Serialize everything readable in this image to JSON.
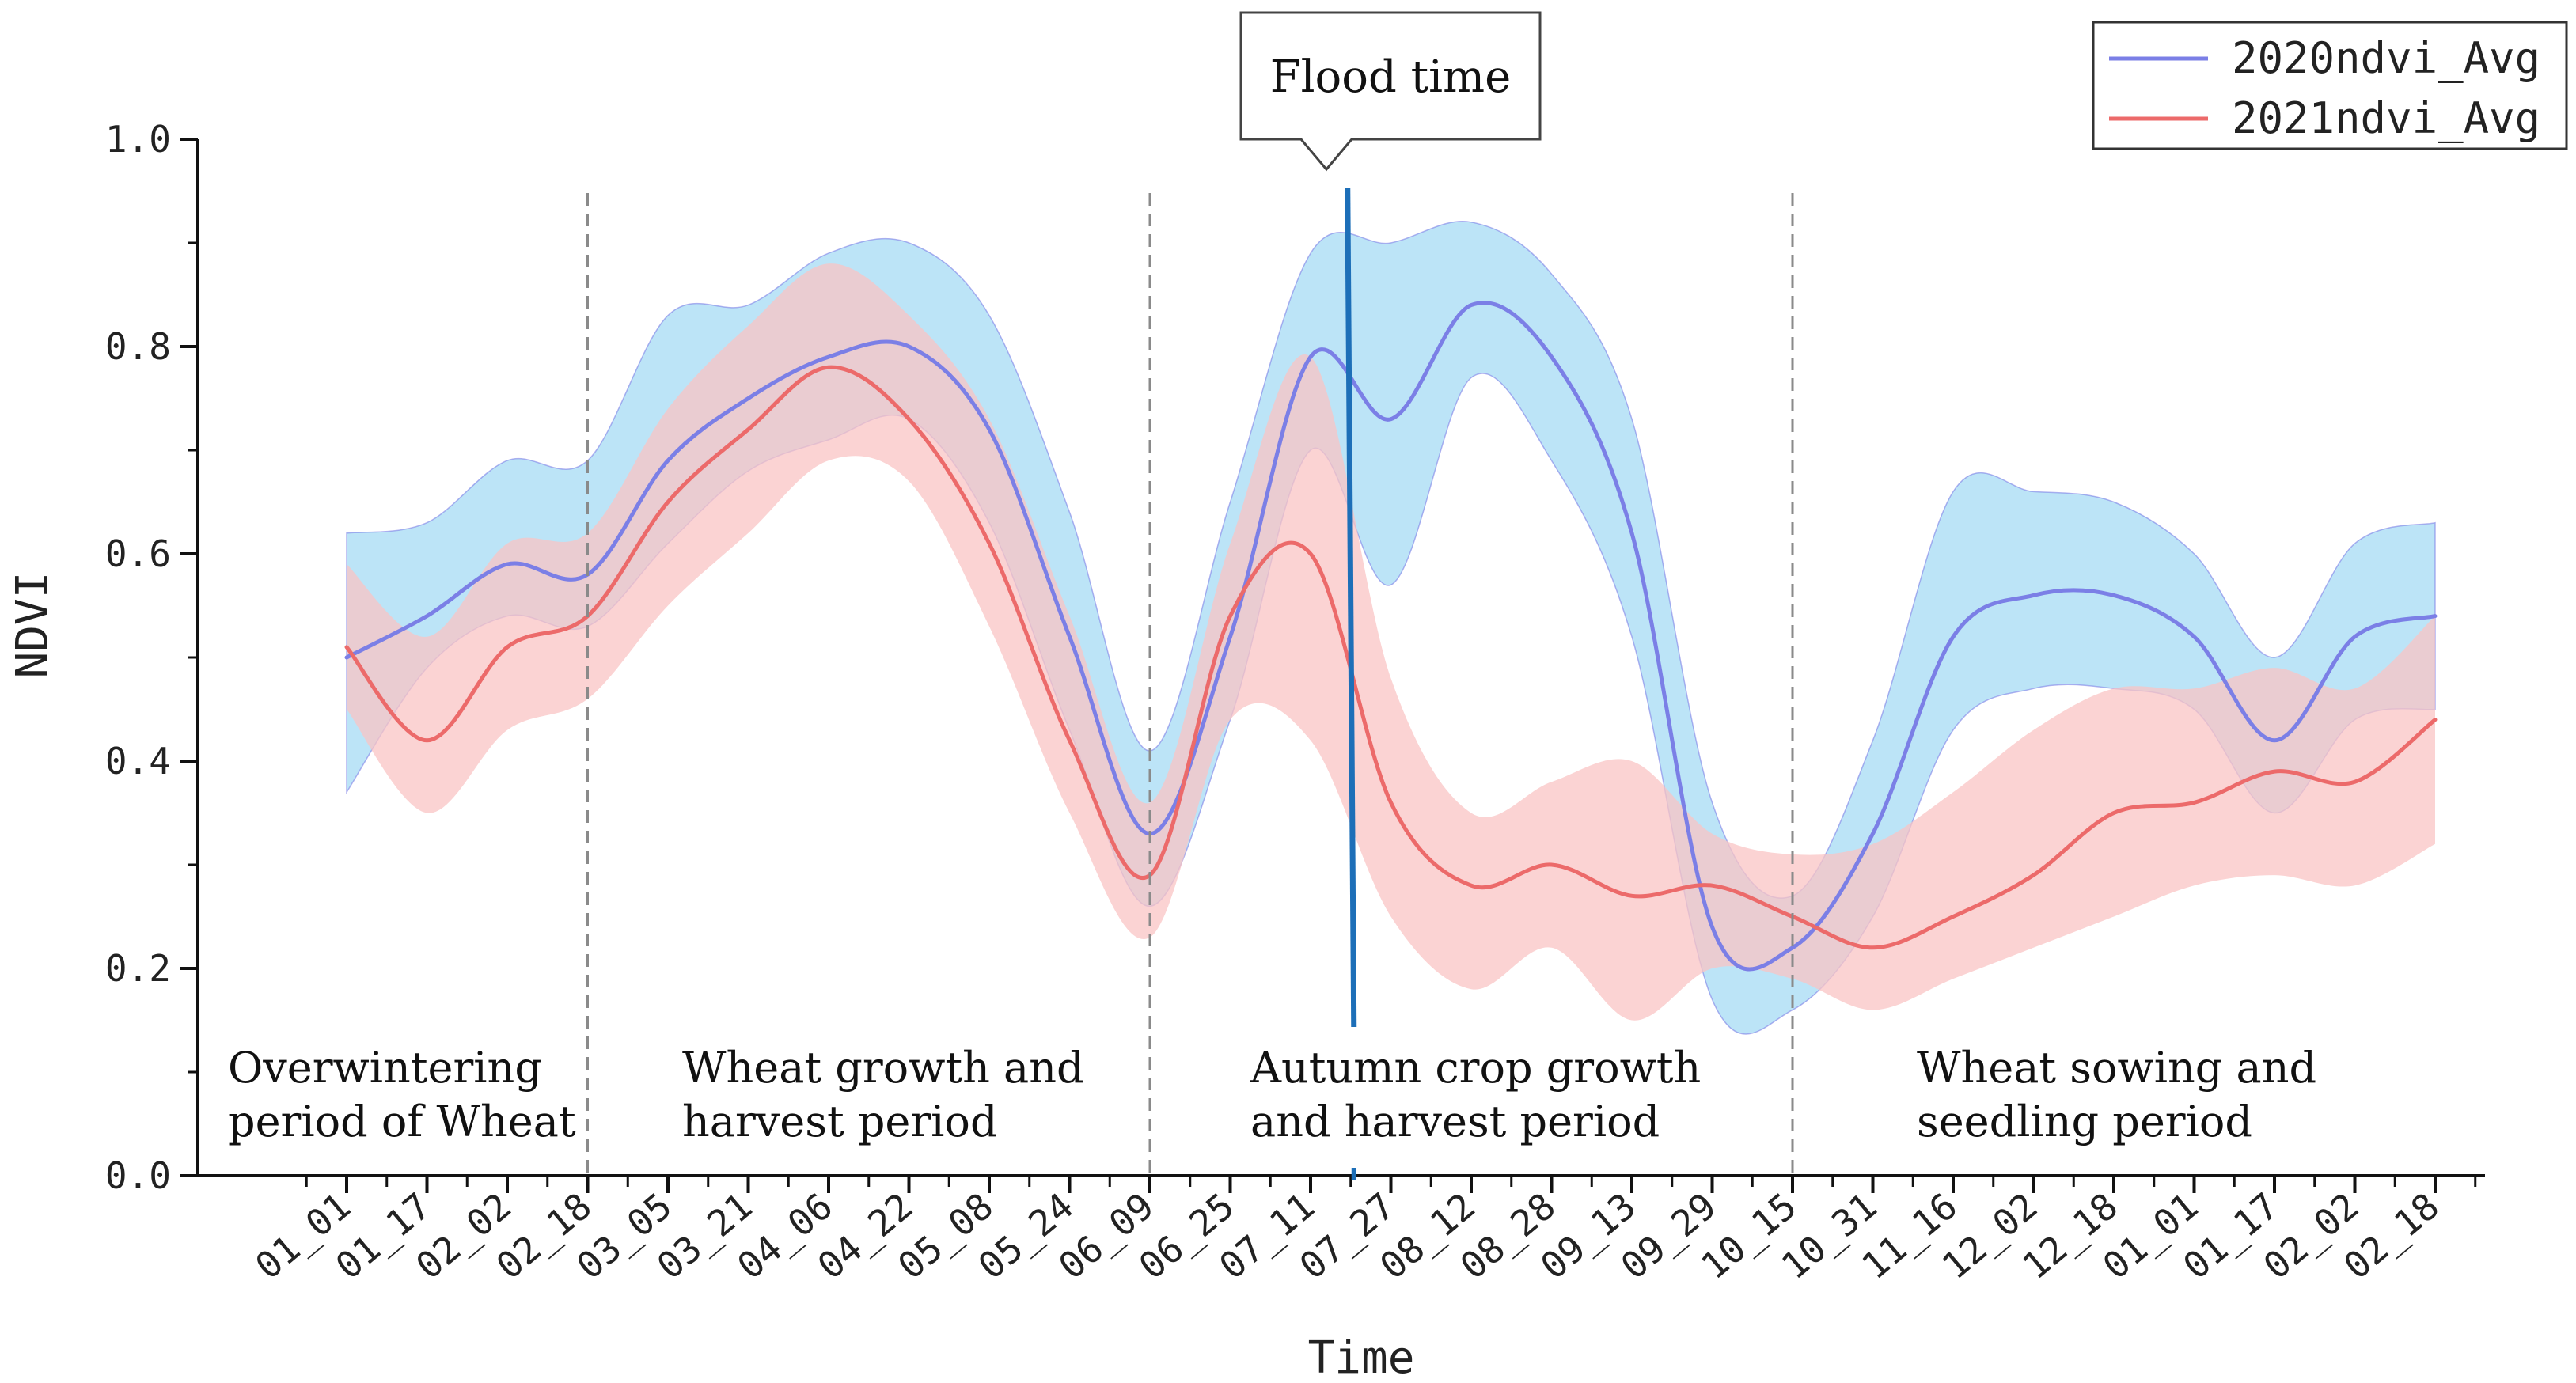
{
  "chart_data": {
    "type": "line",
    "title": "",
    "xlabel": "Time",
    "ylabel": "NDVI",
    "ylim": [
      0.0,
      1.0
    ],
    "yticks": [
      "0.0",
      "0.2",
      "0.4",
      "0.6",
      "0.8",
      "1.0"
    ],
    "categories": [
      "01_01",
      "01_17",
      "02_02",
      "02_18",
      "03_05",
      "03_21",
      "04_06",
      "04_22",
      "05_08",
      "05_24",
      "06_09",
      "06_25",
      "07_11",
      "07_27",
      "08_12",
      "08_28",
      "09_13",
      "09_29",
      "10_15",
      "10_31",
      "11_16",
      "12_02",
      "12_18",
      "01_01",
      "01_17",
      "02_02",
      "02_18"
    ],
    "series": [
      {
        "name": "2020ndvi_Avg",
        "color": "#7b7fe6",
        "band_color": "#b8e3f7",
        "mean": [
          0.5,
          0.54,
          0.59,
          0.58,
          0.69,
          0.75,
          0.79,
          0.8,
          0.72,
          0.52,
          0.33,
          0.52,
          0.79,
          0.73,
          0.84,
          0.79,
          0.62,
          0.24,
          0.22,
          0.33,
          0.52,
          0.56,
          0.56,
          0.52,
          0.42,
          0.52,
          0.54
        ],
        "upper": [
          0.62,
          0.63,
          0.69,
          0.69,
          0.83,
          0.84,
          0.89,
          0.9,
          0.83,
          0.64,
          0.41,
          0.65,
          0.89,
          0.9,
          0.92,
          0.87,
          0.73,
          0.36,
          0.27,
          0.42,
          0.66,
          0.66,
          0.65,
          0.6,
          0.5,
          0.61,
          0.63
        ],
        "lower": [
          0.37,
          0.49,
          0.54,
          0.53,
          0.61,
          0.68,
          0.71,
          0.73,
          0.63,
          0.43,
          0.26,
          0.44,
          0.7,
          0.57,
          0.77,
          0.69,
          0.52,
          0.17,
          0.16,
          0.25,
          0.43,
          0.47,
          0.47,
          0.45,
          0.35,
          0.44,
          0.45
        ]
      },
      {
        "name": "2021ndvi_Avg",
        "color": "#ec6a6a",
        "band_color": "#f9c4c4",
        "mean": [
          0.51,
          0.42,
          0.51,
          0.54,
          0.65,
          0.72,
          0.78,
          0.73,
          0.61,
          0.42,
          0.29,
          0.54,
          0.6,
          0.36,
          0.28,
          0.3,
          0.27,
          0.28,
          0.25,
          0.22,
          0.25,
          0.29,
          0.35,
          0.36,
          0.39,
          0.38,
          0.44
        ],
        "upper": [
          0.59,
          0.52,
          0.61,
          0.62,
          0.74,
          0.82,
          0.88,
          0.83,
          0.73,
          0.54,
          0.36,
          0.61,
          0.79,
          0.48,
          0.35,
          0.38,
          0.4,
          0.33,
          0.31,
          0.32,
          0.37,
          0.43,
          0.47,
          0.47,
          0.49,
          0.47,
          0.54
        ],
        "lower": [
          0.45,
          0.35,
          0.43,
          0.46,
          0.55,
          0.62,
          0.69,
          0.67,
          0.53,
          0.35,
          0.23,
          0.44,
          0.42,
          0.25,
          0.18,
          0.22,
          0.15,
          0.2,
          0.19,
          0.16,
          0.19,
          0.22,
          0.25,
          0.28,
          0.29,
          0.28,
          0.32
        ]
      }
    ],
    "period_dividers_at": [
      "02_18",
      "06_09",
      "10_15"
    ],
    "periods": [
      {
        "line1": "Overwintering",
        "line2": "period of Wheat"
      },
      {
        "line1": "Wheat growth and",
        "line2": "harvest period"
      },
      {
        "line1": "Autumn crop growth",
        "line2": "and harvest period"
      },
      {
        "line1": "Wheat sowing and",
        "line2": "seedling period"
      }
    ],
    "flood": {
      "label": "Flood time",
      "at_index": 12.5,
      "color": "#1d6fb8"
    },
    "legend_position": "top-right"
  }
}
